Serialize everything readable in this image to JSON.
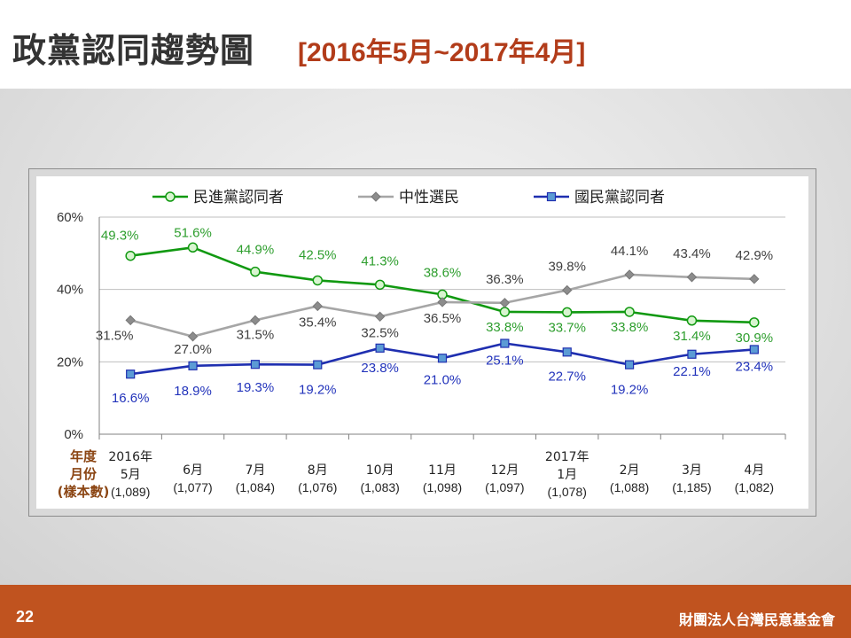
{
  "slide": {
    "title": "政黨認同趨勢圖",
    "subtitle": "[2016年5月~2017年4月]",
    "page_number": "22",
    "organization": "財團法人台灣民意基金會"
  },
  "colors": {
    "dpp": "#119911",
    "dpp_label": "#2e9e2e",
    "neutral": "#a6a6a6",
    "neutral_label": "#404040",
    "kmt": "#1f2fb0",
    "kmt_label": "#2233bb",
    "kmt_marker": "#5b9bd5",
    "axis_label_brown": "#8b4513"
  },
  "chart_data": {
    "type": "line",
    "ylim": [
      0,
      60
    ],
    "yticks": [
      "0%",
      "20%",
      "40%",
      "60%"
    ],
    "row_labels": [
      "年度",
      "月份",
      "(樣本數)"
    ],
    "categories": [
      {
        "year": "2016年",
        "month": "5月",
        "n": "(1,089)"
      },
      {
        "year": "",
        "month": "6月",
        "n": "(1,077)"
      },
      {
        "year": "",
        "month": "7月",
        "n": "(1,084)"
      },
      {
        "year": "",
        "month": "8月",
        "n": "(1,076)"
      },
      {
        "year": "",
        "month": "10月",
        "n": "(1,083)"
      },
      {
        "year": "",
        "month": "11月",
        "n": "(1,098)"
      },
      {
        "year": "",
        "month": "12月",
        "n": "(1,097)"
      },
      {
        "year": "2017年",
        "month": "1月",
        "n": "(1,078)"
      },
      {
        "year": "",
        "month": "2月",
        "n": "(1,088)"
      },
      {
        "year": "",
        "month": "3月",
        "n": "(1,185)"
      },
      {
        "year": "",
        "month": "4月",
        "n": "(1,082)"
      }
    ],
    "series": [
      {
        "name": "民進黨認同者",
        "key": "dpp",
        "values": [
          49.3,
          51.6,
          44.9,
          42.5,
          41.3,
          38.6,
          33.8,
          33.7,
          33.8,
          31.4,
          30.9
        ],
        "labels": [
          "49.3%",
          "51.6%",
          "44.9%",
          "42.5%",
          "41.3%",
          "38.6%",
          "33.8%",
          "33.7%",
          "33.8%",
          "31.4%",
          "30.9%"
        ]
      },
      {
        "name": "中性選民",
        "key": "neutral",
        "values": [
          31.5,
          27.0,
          31.5,
          35.4,
          32.5,
          36.5,
          36.3,
          39.8,
          44.1,
          43.4,
          42.9
        ],
        "labels": [
          "31.5%",
          "27.0%",
          "31.5%",
          "35.4%",
          "32.5%",
          "36.5%",
          "36.3%",
          "39.8%",
          "44.1%",
          "43.4%",
          "42.9%"
        ]
      },
      {
        "name": "國民黨認同者",
        "key": "kmt",
        "values": [
          16.6,
          18.9,
          19.3,
          19.2,
          23.8,
          21.0,
          25.1,
          22.7,
          19.2,
          22.1,
          23.4
        ],
        "labels": [
          "16.6%",
          "18.9%",
          "19.3%",
          "19.2%",
          "23.8%",
          "21.0%",
          "25.1%",
          "22.7%",
          "19.2%",
          "22.1%",
          "23.4%"
        ]
      }
    ],
    "legend": "top",
    "grid": true
  }
}
